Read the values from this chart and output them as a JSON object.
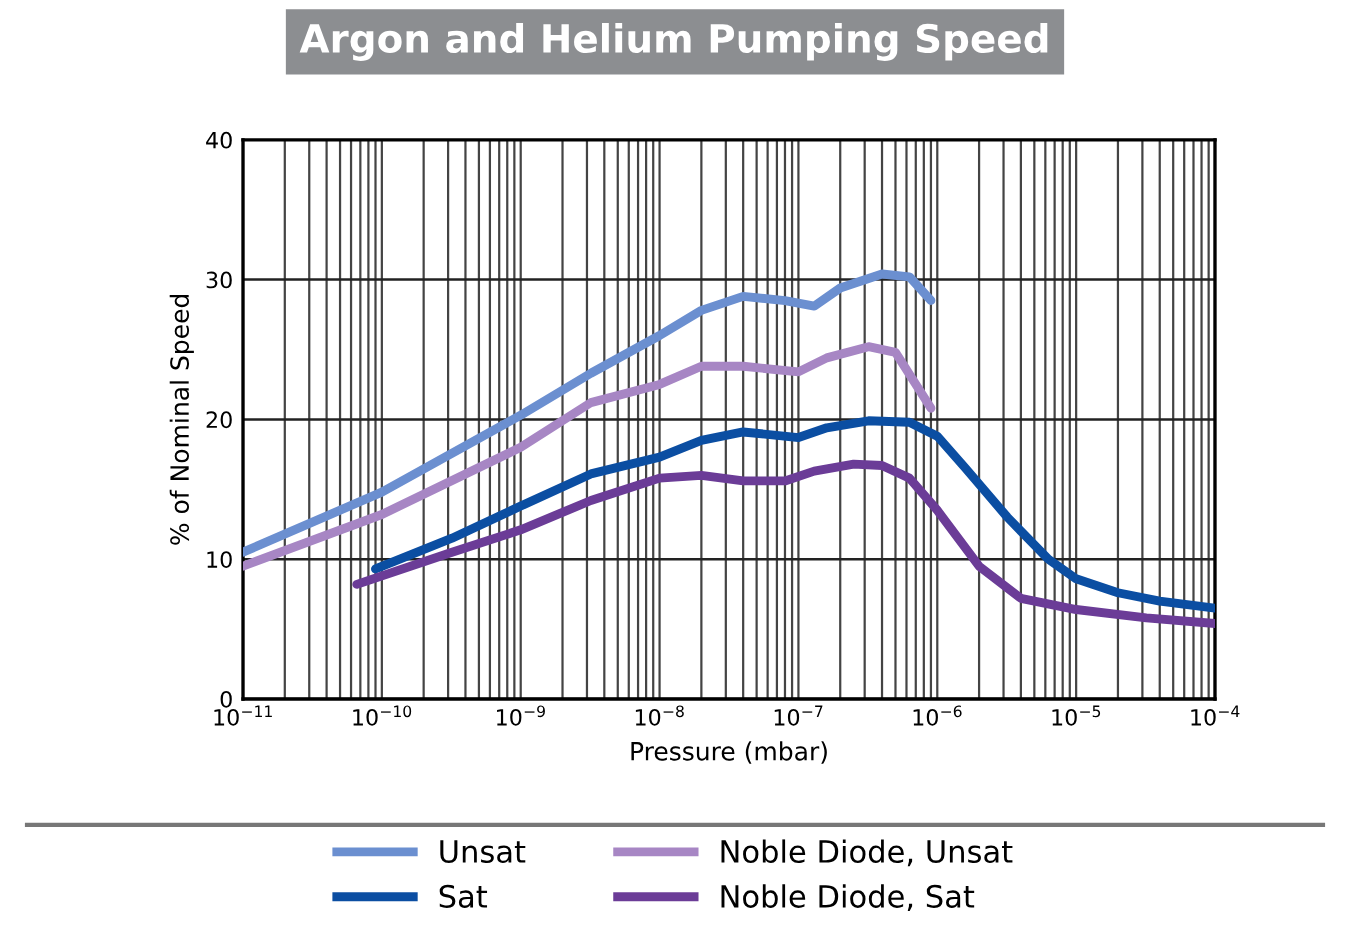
{
  "chart_data": {
    "type": "line",
    "title": "Argon and Helium Pumping Speed",
    "xlabel": "Pressure (mbar)",
    "ylabel": "% of Nominal Speed",
    "log": "x",
    "xlim": [
      1e-11,
      0.0001
    ],
    "ylim": [
      0,
      40
    ],
    "yticks": [
      0,
      10,
      20,
      30,
      40
    ],
    "xticks": [
      {
        "value": 1e-11,
        "label": "10$^{−11}$"
      },
      {
        "value": 1e-10,
        "label": "10$^{−10}$"
      },
      {
        "value": 1e-09,
        "label": "10$^{−9}$"
      },
      {
        "value": 1e-08,
        "label": "10$^{−8}$"
      },
      {
        "value": 1e-07,
        "label": "10$^{−7}$"
      },
      {
        "value": 1e-06,
        "label": "10$^{−6}$"
      },
      {
        "value": 1e-05,
        "label": "10$^{−5}$"
      },
      {
        "value": 0.0001,
        "label": "10$^{−4}$"
      }
    ],
    "grid": true,
    "legend": "bottom",
    "line_style": "solid",
    "marker": "none",
    "series": [
      {
        "name": "Unsat",
        "color": "#6b8fd0",
        "x": [
          1e-11,
          1e-10,
          1e-09,
          3.2e-09,
          1e-08,
          2e-08,
          4e-08,
          8e-08,
          1.3e-07,
          2e-07,
          4e-07,
          6.3e-07,
          9e-07
        ],
        "values": [
          10.5,
          14.8,
          20.3,
          23.3,
          26,
          27.8,
          28.8,
          28.5,
          28.1,
          29.4,
          30.4,
          30.2,
          28.5
        ]
      },
      {
        "name": "Sat",
        "color": "#0b4ea2",
        "x": [
          9e-11,
          3.2e-10,
          1e-09,
          3.2e-09,
          1e-08,
          2e-08,
          4e-08,
          1e-07,
          1.6e-07,
          3.2e-07,
          6.3e-07,
          1e-06,
          1.6e-06,
          3.2e-06,
          6.3e-06,
          1e-05,
          2e-05,
          4e-05,
          0.0001
        ],
        "values": [
          9.3,
          11.5,
          13.8,
          16.1,
          17.3,
          18.5,
          19.1,
          18.7,
          19.4,
          19.9,
          19.8,
          18.8,
          16.5,
          13,
          10,
          8.6,
          7.6,
          7,
          6.5
        ]
      },
      {
        "name": "Noble Diode, Unsat",
        "color": "#a786c4",
        "x": [
          1e-11,
          1e-10,
          1e-09,
          3.2e-09,
          1e-08,
          2e-08,
          4e-08,
          1e-07,
          1.6e-07,
          3.2e-07,
          5e-07,
          9e-07
        ],
        "values": [
          9.5,
          13.2,
          18,
          21.2,
          22.5,
          23.8,
          23.8,
          23.4,
          24.4,
          25.2,
          24.8,
          20.8
        ]
      },
      {
        "name": "Noble Diode, Sat",
        "color": "#6b3c97",
        "x": [
          6.6e-11,
          3.2e-10,
          1e-09,
          3.2e-09,
          1e-08,
          2e-08,
          4e-08,
          8e-08,
          1.3e-07,
          2.5e-07,
          4e-07,
          6.3e-07,
          1e-06,
          2e-06,
          4e-06,
          1e-05,
          3.2e-05,
          0.0001
        ],
        "values": [
          8.2,
          10.5,
          12.1,
          14.2,
          15.8,
          16,
          15.6,
          15.6,
          16.3,
          16.8,
          16.7,
          15.8,
          13.5,
          9.5,
          7.2,
          6.4,
          5.8,
          5.4
        ]
      }
    ]
  }
}
